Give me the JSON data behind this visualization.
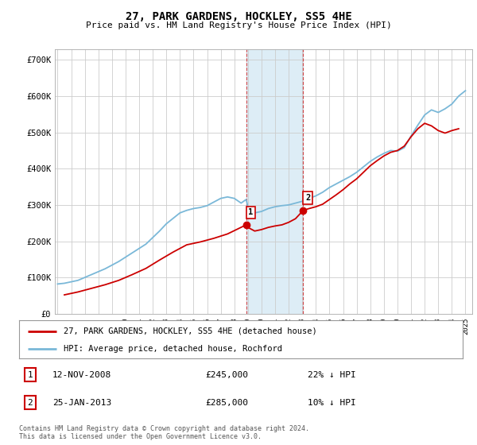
{
  "title": "27, PARK GARDENS, HOCKLEY, SS5 4HE",
  "subtitle": "Price paid vs. HM Land Registry's House Price Index (HPI)",
  "legend_line1": "27, PARK GARDENS, HOCKLEY, SS5 4HE (detached house)",
  "legend_line2": "HPI: Average price, detached house, Rochford",
  "transaction1_label": "1",
  "transaction1_date": "12-NOV-2008",
  "transaction1_price": "£245,000",
  "transaction1_hpi": "22% ↓ HPI",
  "transaction2_label": "2",
  "transaction2_date": "25-JAN-2013",
  "transaction2_price": "£285,000",
  "transaction2_hpi": "10% ↓ HPI",
  "footnote": "Contains HM Land Registry data © Crown copyright and database right 2024.\nThis data is licensed under the Open Government Licence v3.0.",
  "ylim": [
    0,
    730000
  ],
  "yticks": [
    0,
    100000,
    200000,
    300000,
    400000,
    500000,
    600000,
    700000
  ],
  "ytick_labels": [
    "£0",
    "£100K",
    "£200K",
    "£300K",
    "£400K",
    "£500K",
    "£600K",
    "£700K"
  ],
  "background_color": "#ffffff",
  "plot_bg_color": "#ffffff",
  "grid_color": "#cccccc",
  "hpi_color": "#7ab8d8",
  "price_color": "#cc0000",
  "shade_color": "#d8eaf5",
  "transaction1_x": 2008.87,
  "transaction2_x": 2013.07,
  "hpi_x": [
    1995.0,
    1995.5,
    1996.0,
    1996.5,
    1997.0,
    1997.5,
    1998.0,
    1998.5,
    1999.0,
    1999.5,
    2000.0,
    2000.5,
    2001.0,
    2001.5,
    2002.0,
    2002.5,
    2003.0,
    2003.5,
    2004.0,
    2004.5,
    2005.0,
    2005.5,
    2006.0,
    2006.5,
    2007.0,
    2007.5,
    2008.0,
    2008.5,
    2008.87,
    2009.0,
    2009.5,
    2010.0,
    2010.5,
    2011.0,
    2011.5,
    2012.0,
    2012.5,
    2013.0,
    2013.07,
    2013.5,
    2014.0,
    2014.5,
    2015.0,
    2015.5,
    2016.0,
    2016.5,
    2017.0,
    2017.5,
    2018.0,
    2018.5,
    2019.0,
    2019.5,
    2020.0,
    2020.5,
    2021.0,
    2021.5,
    2022.0,
    2022.5,
    2023.0,
    2023.5,
    2024.0,
    2024.5,
    2025.0
  ],
  "hpi_y": [
    82000,
    84000,
    88000,
    92000,
    100000,
    108000,
    116000,
    124000,
    134000,
    144000,
    156000,
    168000,
    180000,
    192000,
    210000,
    228000,
    248000,
    263000,
    278000,
    285000,
    290000,
    293000,
    298000,
    308000,
    318000,
    322000,
    318000,
    305000,
    315000,
    295000,
    278000,
    282000,
    290000,
    295000,
    298000,
    300000,
    305000,
    310000,
    315000,
    318000,
    325000,
    335000,
    348000,
    358000,
    368000,
    378000,
    390000,
    405000,
    420000,
    432000,
    442000,
    450000,
    448000,
    458000,
    490000,
    520000,
    548000,
    562000,
    555000,
    565000,
    578000,
    600000,
    615000
  ],
  "price_x": [
    1995.5,
    1996.5,
    1997.5,
    1998.5,
    1999.5,
    2000.5,
    2001.5,
    2002.5,
    2003.5,
    2004.5,
    2005.5,
    2006.5,
    2007.5,
    2008.87,
    2009.0,
    2009.5,
    2010.0,
    2010.5,
    2011.0,
    2011.5,
    2012.0,
    2012.5,
    2013.07,
    2013.5,
    2014.0,
    2014.5,
    2015.0,
    2015.5,
    2016.0,
    2016.5,
    2017.0,
    2017.5,
    2018.0,
    2018.5,
    2019.0,
    2019.5,
    2020.0,
    2020.5,
    2021.0,
    2021.5,
    2022.0,
    2022.5,
    2023.0,
    2023.5,
    2024.0,
    2024.5
  ],
  "price_y": [
    52000,
    60000,
    70000,
    80000,
    92000,
    108000,
    125000,
    148000,
    170000,
    190000,
    198000,
    208000,
    220000,
    245000,
    238000,
    228000,
    232000,
    238000,
    242000,
    245000,
    252000,
    262000,
    285000,
    290000,
    295000,
    302000,
    315000,
    328000,
    342000,
    358000,
    372000,
    390000,
    408000,
    422000,
    435000,
    445000,
    450000,
    462000,
    488000,
    510000,
    525000,
    518000,
    505000,
    498000,
    505000,
    510000
  ],
  "transaction1_price_val": 245000,
  "transaction2_price_val": 285000,
  "xmin": 1994.8,
  "xmax": 2025.5
}
